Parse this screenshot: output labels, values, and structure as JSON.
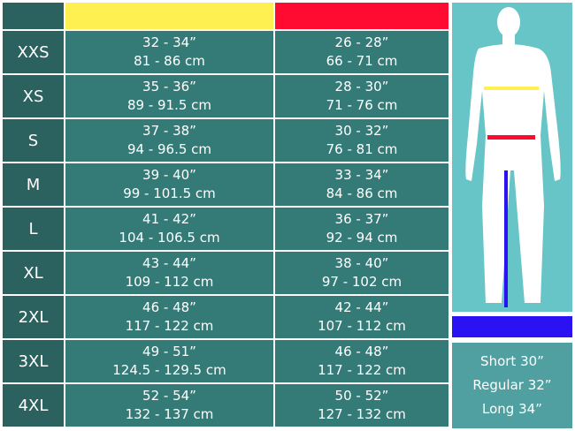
{
  "colors": {
    "chest": "#fdf050",
    "waist": "#ff0a30",
    "inseam": "#2b12f2",
    "size_cell": "#2b615e",
    "value_cell": "#347b78",
    "figure_panel": "#67c5c7",
    "lengths_panel": "#50a0a1"
  },
  "rows": [
    {
      "size": "XXS",
      "chest_in": "32 - 34”",
      "chest_cm": "81 - 86 cm",
      "waist_in": "26 - 28”",
      "waist_cm": "66 - 71 cm"
    },
    {
      "size": "XS",
      "chest_in": "35 - 36”",
      "chest_cm": "89 - 91.5 cm",
      "waist_in": "28 - 30”",
      "waist_cm": "71 - 76 cm"
    },
    {
      "size": "S",
      "chest_in": "37 - 38”",
      "chest_cm": "94 - 96.5 cm",
      "waist_in": "30 - 32”",
      "waist_cm": "76 - 81 cm"
    },
    {
      "size": "M",
      "chest_in": "39 - 40”",
      "chest_cm": "99 - 101.5 cm",
      "waist_in": "33 - 34”",
      "waist_cm": "84 - 86 cm"
    },
    {
      "size": "L",
      "chest_in": "41 - 42”",
      "chest_cm": "104 - 106.5 cm",
      "waist_in": "36 - 37”",
      "waist_cm": "92 - 94 cm"
    },
    {
      "size": "XL",
      "chest_in": "43 - 44”",
      "chest_cm": "109 - 112 cm",
      "waist_in": "38 - 40”",
      "waist_cm": "97 - 102 cm"
    },
    {
      "size": "2XL",
      "chest_in": "46 - 48”",
      "chest_cm": "117 - 122 cm",
      "waist_in": "42 - 44”",
      "waist_cm": "107 - 112 cm"
    },
    {
      "size": "3XL",
      "chest_in": "49 - 51”",
      "chest_cm": "124.5 - 129.5 cm",
      "waist_in": "46 - 48”",
      "waist_cm": "117 - 122 cm"
    },
    {
      "size": "4XL",
      "chest_in": "52 - 54”",
      "chest_cm": "132 - 137 cm",
      "waist_in": "50 - 52”",
      "waist_cm": "127 - 132 cm"
    }
  ],
  "lengths": [
    "Short 30”",
    "Regular 32”",
    "Long 34”"
  ]
}
